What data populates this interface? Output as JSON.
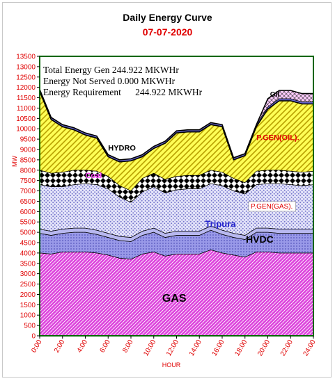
{
  "chart_data": {
    "type": "area",
    "title": "Daily Energy Curve",
    "subtitle": "07-07-2020",
    "xlabel": "HOUR",
    "ylabel": "MW",
    "xlim": [
      0,
      24
    ],
    "ylim": [
      0,
      13500
    ],
    "x_tick_labels": [
      "0:00",
      "2:00",
      "4:00",
      "6:00",
      "8:00",
      "10:00",
      "12:00",
      "14:00",
      "16:00",
      "18:00",
      "20:00",
      "22:00",
      "24:00"
    ],
    "y_tick_values": [
      0,
      500,
      1000,
      1500,
      2000,
      2500,
      3000,
      3500,
      4000,
      4500,
      5000,
      5500,
      6000,
      6500,
      7000,
      7500,
      8000,
      8500,
      9000,
      9500,
      10000,
      10500,
      11000,
      11500,
      12000,
      12500,
      13000,
      13500
    ],
    "x": [
      0,
      1,
      2,
      3,
      4,
      5,
      6,
      7,
      8,
      9,
      10,
      11,
      12,
      13,
      14,
      15,
      16,
      17,
      18,
      19,
      20,
      21,
      22,
      23,
      24
    ],
    "series": [
      {
        "name": "GAS",
        "color": "#cc33cc",
        "values": [
          4000,
          3950,
          4050,
          4050,
          4050,
          4000,
          3900,
          3750,
          3700,
          3950,
          4050,
          3850,
          3950,
          3950,
          3950,
          4150,
          4000,
          3900,
          3800,
          4050,
          4050,
          4000,
          4000,
          4000,
          4000
        ]
      },
      {
        "name": "HVDC",
        "color": "#8888dd",
        "values": [
          950,
          900,
          900,
          950,
          950,
          900,
          850,
          850,
          850,
          900,
          950,
          900,
          900,
          900,
          900,
          950,
          900,
          850,
          850,
          950,
          950,
          950,
          950,
          950,
          950
        ]
      },
      {
        "name": "Tripura",
        "color": "#aaaaee",
        "values": [
          200,
          200,
          200,
          200,
          200,
          200,
          200,
          200,
          200,
          200,
          200,
          200,
          200,
          200,
          200,
          200,
          200,
          200,
          200,
          200,
          200,
          200,
          200,
          200,
          200
        ]
      },
      {
        "name": "P.GEN(GAS).",
        "color": "#9999ee",
        "values": [
          2150,
          2150,
          2050,
          2100,
          2150,
          2200,
          2150,
          1900,
          1700,
          1900,
          2000,
          1950,
          2000,
          2050,
          2050,
          2050,
          2150,
          2050,
          2000,
          2100,
          2150,
          2200,
          2150,
          2100,
          2150
        ]
      },
      {
        "name": "Coal",
        "color": "#000000",
        "values": [
          700,
          650,
          700,
          700,
          650,
          650,
          600,
          550,
          550,
          650,
          650,
          650,
          650,
          650,
          650,
          650,
          650,
          600,
          550,
          650,
          650,
          650,
          650,
          650,
          650
        ]
      },
      {
        "name": "P.GEN(OIL).",
        "color": "#ffff44",
        "values": [
          3800,
          2600,
          2200,
          1950,
          1700,
          1600,
          950,
          1150,
          1450,
          1050,
          1200,
          1750,
          2100,
          2100,
          2100,
          2200,
          2200,
          900,
          1300,
          2150,
          2950,
          3350,
          3400,
          3300,
          3250
        ]
      },
      {
        "name": "HYDRO",
        "color": "#6666cc",
        "values": [
          100,
          100,
          100,
          100,
          100,
          100,
          100,
          100,
          100,
          100,
          100,
          100,
          100,
          100,
          100,
          100,
          100,
          100,
          100,
          100,
          100,
          100,
          100,
          100,
          100
        ]
      },
      {
        "name": "Oil",
        "color": "#ff88ff",
        "values": [
          0,
          0,
          0,
          0,
          0,
          0,
          0,
          0,
          0,
          0,
          0,
          0,
          0,
          0,
          0,
          0,
          0,
          0,
          0,
          0,
          400,
          400,
          400,
          400,
          400
        ]
      }
    ],
    "annotations": {
      "total_gen": "Total Energy Gen 244.922 MKWHr",
      "not_served": "Energy Not Served  0.000 MKWHr",
      "requirement": "Energy Requirement      244.922 MKWHr"
    }
  },
  "series_label_colors": {
    "GAS": "#000000",
    "HVDC": "#000000",
    "Tripura": "#2222cc",
    "P.GEN(GAS).": "#e00000",
    "Coal": "#ff44ff",
    "P.GEN(OIL).": "#e00000",
    "HYDRO": "#000000",
    "Oil": "#000000"
  }
}
